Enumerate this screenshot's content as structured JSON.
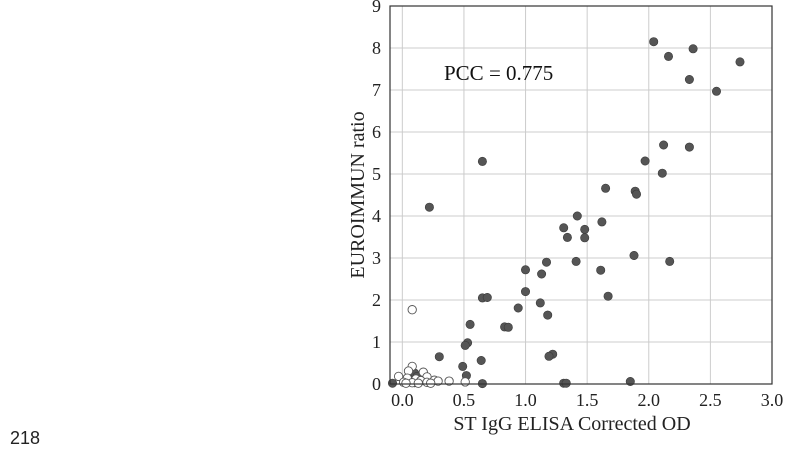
{
  "page": {
    "page_number": "218"
  },
  "chart_data": {
    "type": "scatter",
    "title": "",
    "xlabel": "ST IgG ELISA Corrected OD",
    "ylabel": "EUROIMMUN ratio",
    "xlim": [
      -0.1,
      3.0
    ],
    "ylim": [
      0,
      9
    ],
    "x_ticks": [
      0.0,
      0.5,
      1.0,
      1.5,
      2.0,
      2.5,
      3.0
    ],
    "x_tick_labels": [
      "0.0",
      "0.5",
      "1.0",
      "1.5",
      "2.0",
      "2.5",
      "3.0"
    ],
    "y_ticks": [
      0,
      1,
      2,
      3,
      4,
      5,
      6,
      7,
      8,
      9
    ],
    "y_tick_labels": [
      "0",
      "1",
      "2",
      "3",
      "4",
      "5",
      "6",
      "7",
      "8",
      "9"
    ],
    "grid": true,
    "annotation": "PCC = 0.775",
    "colors": {
      "filled": "#555555",
      "hollow_edge": "#555555",
      "grid": "#cccccc"
    },
    "series": [
      {
        "style": "filled",
        "points": [
          [
            2.04,
            8.15
          ],
          [
            2.36,
            7.98
          ],
          [
            2.16,
            7.8
          ],
          [
            2.74,
            7.67
          ],
          [
            2.33,
            7.25
          ],
          [
            2.55,
            6.97
          ],
          [
            2.12,
            5.69
          ],
          [
            2.33,
            5.64
          ],
          [
            1.97,
            5.31
          ],
          [
            0.65,
            5.3
          ],
          [
            2.11,
            5.02
          ],
          [
            1.65,
            4.66
          ],
          [
            1.89,
            4.59
          ],
          [
            1.9,
            4.52
          ],
          [
            0.22,
            4.21
          ],
          [
            1.42,
            4.0
          ],
          [
            1.62,
            3.86
          ],
          [
            1.31,
            3.72
          ],
          [
            1.48,
            3.68
          ],
          [
            1.34,
            3.49
          ],
          [
            1.48,
            3.48
          ],
          [
            1.88,
            3.06
          ],
          [
            2.17,
            2.92
          ],
          [
            1.17,
            2.9
          ],
          [
            1.41,
            2.92
          ],
          [
            1.0,
            2.72
          ],
          [
            1.13,
            2.62
          ],
          [
            1.61,
            2.71
          ],
          [
            1.0,
            2.2
          ],
          [
            1.67,
            2.09
          ],
          [
            0.65,
            2.05
          ],
          [
            0.69,
            2.06
          ],
          [
            1.12,
            1.93
          ],
          [
            0.94,
            1.81
          ],
          [
            1.18,
            1.64
          ],
          [
            0.55,
            1.42
          ],
          [
            0.83,
            1.36
          ],
          [
            0.86,
            1.35
          ],
          [
            0.53,
            0.98
          ],
          [
            0.51,
            0.92
          ],
          [
            0.3,
            0.65
          ],
          [
            1.22,
            0.71
          ],
          [
            1.19,
            0.66
          ],
          [
            0.64,
            0.56
          ],
          [
            0.49,
            0.42
          ],
          [
            0.52,
            0.2
          ],
          [
            0.1,
            0.26
          ],
          [
            0.12,
            0.18
          ],
          [
            0.05,
            0.12
          ],
          [
            0.02,
            0.1
          ],
          [
            0.07,
            0.06
          ],
          [
            0.1,
            0.03
          ],
          [
            -0.08,
            0.02
          ],
          [
            0.65,
            0.01
          ],
          [
            1.31,
            0.02
          ],
          [
            1.33,
            0.02
          ],
          [
            1.85,
            0.06
          ]
        ]
      },
      {
        "style": "hollow",
        "points": [
          [
            0.08,
            1.77
          ],
          [
            0.08,
            0.42
          ],
          [
            0.05,
            0.31
          ],
          [
            0.17,
            0.28
          ],
          [
            -0.03,
            0.18
          ],
          [
            0.2,
            0.17
          ],
          [
            0.04,
            0.14
          ],
          [
            0.11,
            0.12
          ],
          [
            0.15,
            0.08
          ],
          [
            0.26,
            0.09
          ],
          [
            0.29,
            0.07
          ],
          [
            0.38,
            0.07
          ],
          [
            0.2,
            0.04
          ],
          [
            0.01,
            0.04
          ],
          [
            0.08,
            0.03
          ],
          [
            0.13,
            0.02
          ],
          [
            0.03,
            0.02
          ],
          [
            0.51,
            0.05
          ],
          [
            0.23,
            0.02
          ]
        ]
      }
    ]
  }
}
